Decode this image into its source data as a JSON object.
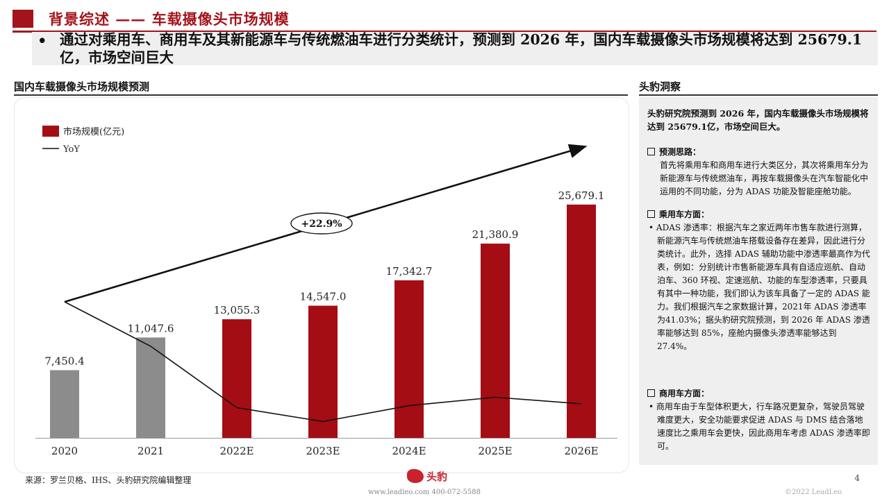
{
  "header": {
    "title": "背景综述 —— 车载摄像头市场规模"
  },
  "summary": {
    "bullet": "•",
    "text": "通过对乘用车、商用车及其新能源车与传统燃油车进行分类统计，预测到 2026 年，国内车载摄像头市场规模将达到 25679.1 亿，市场空间巨大"
  },
  "left_section": {
    "heading": "国内车载摄像头市场规模预测"
  },
  "right_section": {
    "heading": "头豹洞察"
  },
  "chart_data": {
    "type": "bar",
    "categories": [
      "2020",
      "2021",
      "2022E",
      "2023E",
      "2024E",
      "2025E",
      "2026E"
    ],
    "series": [
      {
        "name": "市场规模(亿元)",
        "type": "bar",
        "values": [
          7450.4,
          11047.6,
          13055.3,
          14547.0,
          17342.7,
          21380.9,
          25679.1
        ],
        "value_labels": [
          "7,450.4",
          "11,047.6",
          "13,055.3",
          "14,547.0",
          "17,342.7",
          "21,380.9",
          "25,679.1"
        ],
        "colors": [
          "#8c8c8c",
          "#8c8c8c",
          "#a50d14",
          "#a50d14",
          "#a50d14",
          "#a50d14",
          "#a50d14"
        ]
      },
      {
        "name": "YoY",
        "type": "line",
        "color": "#111111",
        "values": [
          null,
          48.3,
          18.2,
          11.4,
          19.2,
          23.3,
          20.1
        ]
      }
    ],
    "annotation": {
      "text": "+22.9%",
      "arrow": "cagr"
    },
    "legend": "top-left",
    "ylim": [
      0,
      30000
    ],
    "yoy_ylim": [
      0,
      100
    ],
    "grid": false
  },
  "insight": {
    "intro": "头豹研究院预测到 2026 年，国内车载摄像头市场规模将达到 25679.1亿，市场空间巨大。",
    "sections": [
      {
        "title": "预测思路：",
        "items": [
          "首先将乘用车和商用车进行大类区分，其次将乘用车分为新能源车与传统燃油车，再按车载摄像头在汽车智能化中运用的不同功能，分为 ADAS 功能及智能座舱功能。"
        ]
      },
      {
        "title": "乘用车方面：",
        "items": [
          "ADAS 渗透率：根据汽车之家近两年市售车款进行测算，新能源汽车与传统燃油车搭载设备存在差异，因此进行分类统计。此外，选择 ADAS 辅助功能中渗透率最高作为代表，例如：分别统计市售新能源车具有自适应巡航、自动泊车、360 环视、定速巡航、功能的车型渗透率，只要具有其中一种功能，我们即认为该车具备了一定的 ADAS 能力。我们根据汽车之家数据计算，2021年 ADAS 渗透率为41.03%；据头豹研究院预测，到 2026 年 ADAS 渗透率能够达到 85%，座舱内摄像头渗透率能够达到27.4%。"
        ]
      },
      {
        "title": "商用车方面：",
        "items": [
          "商用车由于车型体积更大，行车路况更复杂，驾驶员驾驶难度更大，安全功能要求促进 ADAS 与 DMS 结合落地速度比之乘用车会更快，因此商用车考虑 ADAS 渗透率即可。"
        ]
      }
    ]
  },
  "footer": {
    "source": "来源：罗兰贝格、IHS、头豹研究院编辑整理",
    "brand": "头豹",
    "contact": "www.leadleo.com  400-072-5588",
    "copyright": "©2022 LeadLeo",
    "page": "4"
  }
}
